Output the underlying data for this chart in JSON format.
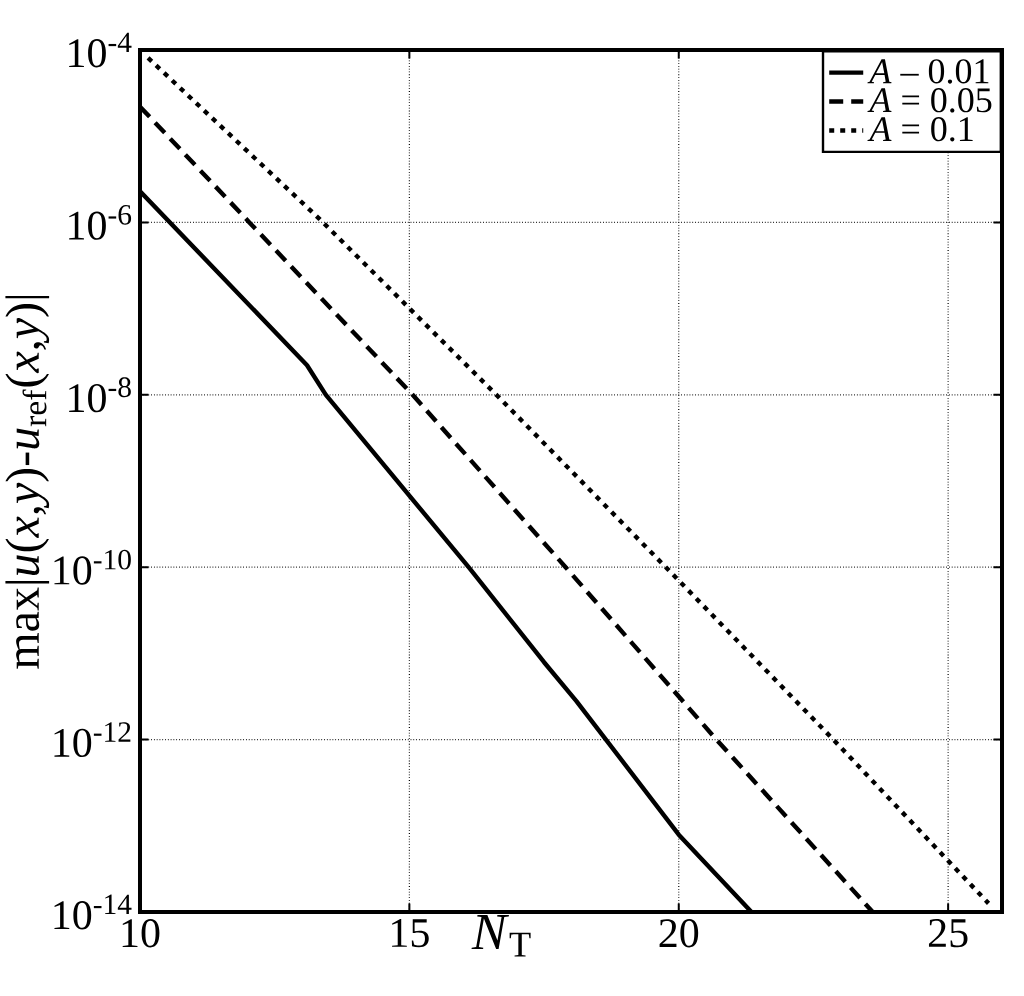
{
  "chart_data": {
    "type": "line",
    "xlabel": "*N*$_{T}$",
    "ylabel": "max|*u*(*x*,*y*)-*u*$_{ref}$(*x*,*y*)|",
    "log": "y",
    "grid": true,
    "legend": "top right",
    "xlim": [
      10,
      26
    ],
    "ylim": [
      1e-14,
      0.0001
    ],
    "xticks": [
      10,
      15,
      20,
      25
    ],
    "yticks": [
      {
        "value": 1e-14,
        "label": "10$^{-14}$"
      },
      {
        "value": 1e-12,
        "label": "10$^{-12}$"
      },
      {
        "value": 1e-10,
        "label": "10$^{-10}$"
      },
      {
        "value": 1e-08,
        "label": "10$^{-8}$"
      },
      {
        "value": 1e-06,
        "label": "10$^{-6}$"
      },
      {
        "value": 0.0001,
        "label": "10$^{-4}$"
      }
    ],
    "series": [
      {
        "name": "*A* – 0.01",
        "color": "#000000",
        "line_style": "solid",
        "x": [
          10,
          13.1,
          13.45,
          16.1,
          17.5,
          18.1,
          20,
          21.35
        ],
        "values": [
          2.3e-06,
          2.2e-08,
          1e-08,
          1e-10,
          7.9e-12,
          2.8e-12,
          7.9e-14,
          1e-14
        ]
      },
      {
        "name": "*A* = 0.05",
        "color": "#000000",
        "line_style": "dashed",
        "x": [
          10,
          12.03,
          15.06,
          17.9,
          20.7,
          23.6
        ],
        "values": [
          2.2e-05,
          1e-06,
          1e-08,
          1e-10,
          1e-12,
          1e-14
        ]
      },
      {
        "name": "*A* = 0.1",
        "color": "#000000",
        "line_style": "dotted",
        "x": [
          10.15,
          13.33,
          16.65,
          19.76,
          22.87,
          25.75
        ],
        "values": [
          8.1e-05,
          1.1e-06,
          9.5e-09,
          1e-10,
          1e-12,
          1.26e-14
        ]
      }
    ]
  }
}
